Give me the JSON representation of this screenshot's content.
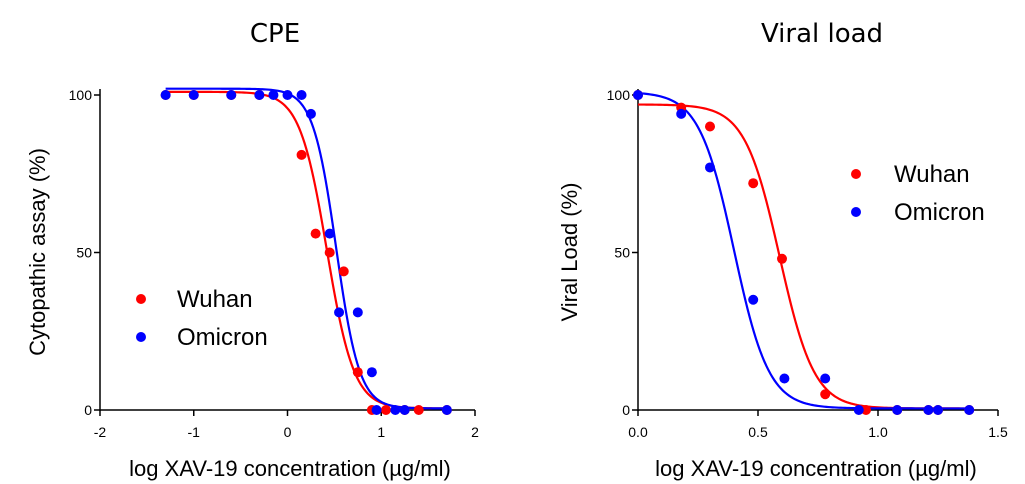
{
  "chart_data": [
    {
      "type": "scatter",
      "title": "CPE",
      "xlabel": "log XAV-19 concentration (µg/ml)",
      "ylabel": "Cytopathic assay (%)",
      "xlim": [
        -2,
        2
      ],
      "ylim": [
        0,
        100
      ],
      "xticks": [
        "-2",
        "-1",
        "0",
        "1",
        "2"
      ],
      "yticks": [
        "0",
        "50",
        "100"
      ],
      "legend_position": "left-middle",
      "series": [
        {
          "name": "Wuhan",
          "color": "#ff0000",
          "points": [
            [
              -1.3,
              100
            ],
            [
              -1.0,
              100
            ],
            [
              -0.6,
              100
            ],
            [
              -0.3,
              100
            ],
            [
              0.15,
              81
            ],
            [
              0.3,
              56
            ],
            [
              0.45,
              50
            ],
            [
              0.6,
              44
            ],
            [
              0.75,
              12
            ],
            [
              0.9,
              0
            ],
            [
              1.05,
              0
            ],
            [
              1.25,
              0
            ],
            [
              1.4,
              0
            ],
            [
              1.7,
              0
            ]
          ],
          "fit": {
            "top": 101,
            "bottom": 0.5,
            "ic50_log": 0.42,
            "hill": 3.0
          }
        },
        {
          "name": "Omicron",
          "color": "#0000ff",
          "points": [
            [
              -1.3,
              100
            ],
            [
              -1.0,
              100
            ],
            [
              -0.6,
              100
            ],
            [
              -0.3,
              100
            ],
            [
              -0.15,
              100
            ],
            [
              0.0,
              100
            ],
            [
              0.15,
              100
            ],
            [
              0.25,
              94
            ],
            [
              0.45,
              56
            ],
            [
              0.55,
              31
            ],
            [
              0.75,
              31
            ],
            [
              0.9,
              12
            ],
            [
              0.95,
              0
            ],
            [
              1.15,
              0
            ],
            [
              1.25,
              0
            ],
            [
              1.7,
              0
            ]
          ],
          "fit": {
            "top": 102,
            "bottom": 0.5,
            "ic50_log": 0.52,
            "hill": 3.5
          }
        }
      ]
    },
    {
      "type": "scatter",
      "title": "Viral load",
      "xlabel": "log XAV-19 concentration (µg/ml)",
      "ylabel": "Viral Load (%)",
      "xlim": [
        0,
        1.5
      ],
      "ylim": [
        0,
        100
      ],
      "xticks": [
        "0.0",
        "0.5",
        "1.0",
        "1.5"
      ],
      "yticks": [
        "0",
        "50",
        "100"
      ],
      "legend_position": "right-top",
      "series": [
        {
          "name": "Wuhan",
          "color": "#ff0000",
          "points": [
            [
              0.0,
              100
            ],
            [
              0.18,
              96
            ],
            [
              0.3,
              90
            ],
            [
              0.48,
              72
            ],
            [
              0.6,
              48
            ],
            [
              0.78,
              5
            ],
            [
              0.95,
              0
            ],
            [
              1.08,
              0
            ],
            [
              1.21,
              0
            ],
            [
              1.25,
              0
            ],
            [
              1.38,
              0
            ]
          ],
          "fit": {
            "top": 97,
            "bottom": 0.5,
            "ic50_log": 0.59,
            "hill": 6.0
          }
        },
        {
          "name": "Omicron",
          "color": "#0000ff",
          "points": [
            [
              0.0,
              100
            ],
            [
              0.18,
              94
            ],
            [
              0.3,
              77
            ],
            [
              0.48,
              35
            ],
            [
              0.61,
              10
            ],
            [
              0.78,
              10
            ],
            [
              0.92,
              0
            ],
            [
              1.08,
              0
            ],
            [
              1.21,
              0
            ],
            [
              1.25,
              0
            ],
            [
              1.38,
              0
            ]
          ],
          "fit": {
            "top": 101,
            "bottom": 0.5,
            "ic50_log": 0.4,
            "hill": 6.0
          }
        }
      ]
    }
  ]
}
